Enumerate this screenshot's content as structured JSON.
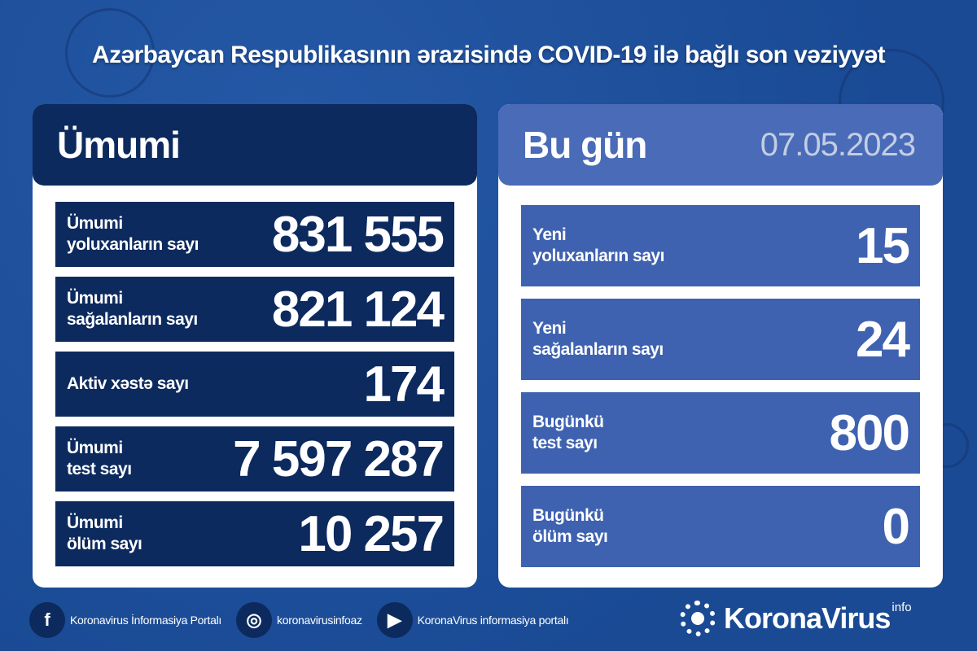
{
  "colors": {
    "background": "#1d4f9c",
    "dark_panel": "#0c2a5e",
    "today_row": "#3f62b0",
    "today_header": "#4a6bb7"
  },
  "title": "Azərbaycan Respublikasının ərazisində COVID-19 ilə bağlı son vəziyyət",
  "total": {
    "heading": "Ümumi",
    "rows": [
      {
        "label": [
          "Ümumi",
          "yoluxanların sayı"
        ],
        "value": "831 555"
      },
      {
        "label": [
          "Ümumi",
          "sağalanların sayı"
        ],
        "value": "821 124"
      },
      {
        "label": [
          "Aktiv xəstə sayı"
        ],
        "value": "174"
      },
      {
        "label": [
          "Ümumi",
          "test sayı"
        ],
        "value": "7 597 287"
      },
      {
        "label": [
          "Ümumi",
          "ölüm sayı"
        ],
        "value": "10 257"
      }
    ]
  },
  "today": {
    "heading": "Bu gün",
    "date": "07.05.2023",
    "rows": [
      {
        "label": [
          "Yeni",
          "yoluxanların sayı"
        ],
        "value": "15"
      },
      {
        "label": [
          "Yeni",
          "sağalanların sayı"
        ],
        "value": "24"
      },
      {
        "label": [
          "Bugünkü",
          "test sayı"
        ],
        "value": "800"
      },
      {
        "label": [
          "Bugünkü",
          "ölüm sayı"
        ],
        "value": "0"
      }
    ]
  },
  "footer": {
    "links": [
      {
        "icon": "facebook-icon",
        "glyph": "f",
        "text": "Koronavirus İnformasiya Portalı"
      },
      {
        "icon": "instagram-icon",
        "glyph": "◎",
        "text": "koronavirusinfoaz"
      },
      {
        "icon": "youtube-icon",
        "glyph": "▶",
        "text": "KoronaVirus informasiya portalı"
      }
    ],
    "logo": {
      "text": "KoronaVirus",
      "sup": "info"
    }
  }
}
